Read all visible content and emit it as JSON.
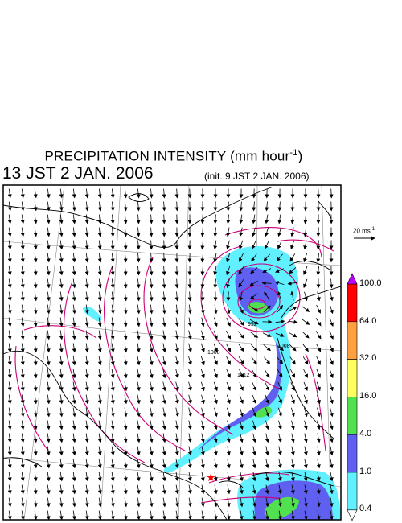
{
  "title": {
    "main": "PRECIPITATION INTENSITY (mm hour",
    "unit_exponent": "-1",
    "close": ")"
  },
  "valid_time": "13 JST 2 JAN. 2006",
  "init_time": "(init. 9 JST 2 JAN. 2006)",
  "reference_vector": {
    "label": "20 ms",
    "exponent": "-1"
  },
  "colorbar": {
    "levels": [
      "100.0",
      "64.0",
      "32.0",
      "16.0",
      "4.0",
      "1.0",
      "0.4"
    ],
    "colors": [
      "#ff0000",
      "#ffa040",
      "#ffff60",
      "#50e050",
      "#6060f0",
      "#60f0ff"
    ],
    "over_color": "#c000ff",
    "under_color": "#ffffff"
  },
  "isobar_labels": [
    "992",
    "1008",
    "1012",
    "1008"
  ],
  "colors": {
    "isobar": "#cc0077",
    "coast": "#000000",
    "grid": "#888888",
    "marker": "#ff0000"
  }
}
